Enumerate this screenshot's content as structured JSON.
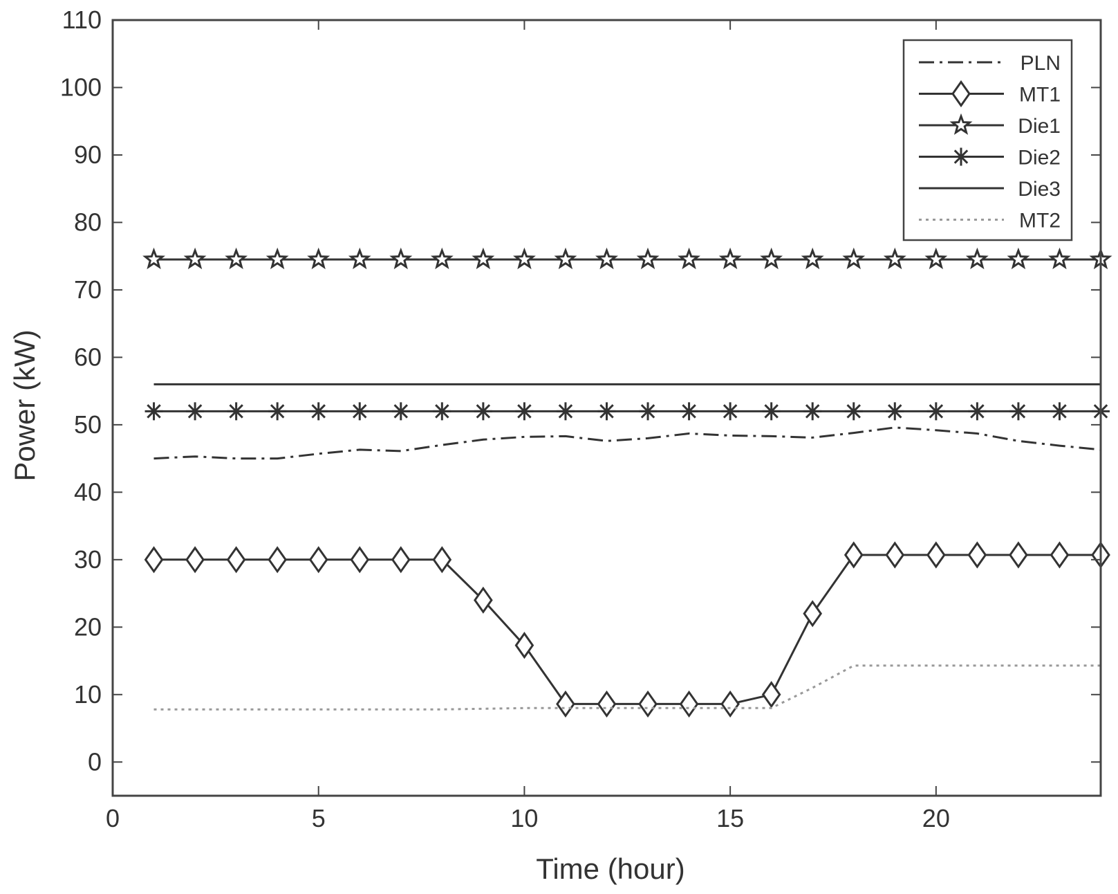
{
  "chart_data": {
    "type": "line",
    "xlabel": "Time (hour)",
    "ylabel": "Power (kW)",
    "xlim": [
      0,
      24
    ],
    "ylim": [
      -5,
      110
    ],
    "x_ticks": [
      0,
      5,
      10,
      15,
      20
    ],
    "y_ticks": [
      0,
      10,
      20,
      30,
      40,
      50,
      60,
      70,
      80,
      90,
      100,
      110
    ],
    "grid": false,
    "legend_position": "top-right",
    "x": [
      1,
      2,
      3,
      4,
      5,
      6,
      7,
      8,
      9,
      10,
      11,
      12,
      13,
      14,
      15,
      16,
      17,
      18,
      19,
      20,
      21,
      22,
      23,
      24
    ],
    "series": [
      {
        "name": "PLN",
        "line": "dash-dot",
        "marker": "none",
        "values": [
          45.0,
          45.3,
          45.0,
          45.0,
          45.7,
          46.3,
          46.1,
          47.0,
          47.8,
          48.2,
          48.3,
          47.6,
          48.0,
          48.7,
          48.4,
          48.3,
          48.1,
          48.8,
          49.6,
          49.2,
          48.7,
          47.6,
          46.9,
          46.3
        ]
      },
      {
        "name": "MT1",
        "line": "solid",
        "marker": "diamond",
        "values": [
          30.0,
          30.0,
          30.0,
          30.0,
          30.0,
          30.0,
          30.0,
          30.0,
          24.0,
          17.3,
          8.6,
          8.6,
          8.6,
          8.6,
          8.6,
          10.0,
          22.0,
          30.7,
          30.7,
          30.7,
          30.7,
          30.7,
          30.7,
          30.7
        ]
      },
      {
        "name": "Die1",
        "line": "solid",
        "marker": "star",
        "values": [
          74.5,
          74.5,
          74.5,
          74.5,
          74.5,
          74.5,
          74.5,
          74.5,
          74.5,
          74.5,
          74.5,
          74.5,
          74.5,
          74.5,
          74.5,
          74.5,
          74.5,
          74.5,
          74.5,
          74.5,
          74.5,
          74.5,
          74.5,
          74.5
        ]
      },
      {
        "name": "Die2",
        "line": "solid",
        "marker": "asterisk",
        "values": [
          52.0,
          52.0,
          52.0,
          52.0,
          52.0,
          52.0,
          52.0,
          52.0,
          52.0,
          52.0,
          52.0,
          52.0,
          52.0,
          52.0,
          52.0,
          52.0,
          52.0,
          52.0,
          52.0,
          52.0,
          52.0,
          52.0,
          52.0,
          52.0
        ]
      },
      {
        "name": "Die3",
        "line": "solid",
        "marker": "none",
        "values": [
          56.0,
          56.0,
          56.0,
          56.0,
          56.0,
          56.0,
          56.0,
          56.0,
          56.0,
          56.0,
          56.0,
          56.0,
          56.0,
          56.0,
          56.0,
          56.0,
          56.0,
          56.0,
          56.0,
          56.0,
          56.0,
          56.0,
          56.0,
          56.0
        ]
      },
      {
        "name": "MT2",
        "line": "dotted",
        "marker": "none",
        "values": [
          7.8,
          7.8,
          7.8,
          7.8,
          7.8,
          7.8,
          7.8,
          7.8,
          7.9,
          8.0,
          8.0,
          8.0,
          8.0,
          8.0,
          8.0,
          8.0,
          11.0,
          14.3,
          14.3,
          14.3,
          14.3,
          14.3,
          14.3,
          14.3
        ]
      }
    ]
  },
  "colors": {
    "line": "#333333",
    "mt2_line": "#999999",
    "axis": "#444444",
    "background": "#ffffff"
  }
}
